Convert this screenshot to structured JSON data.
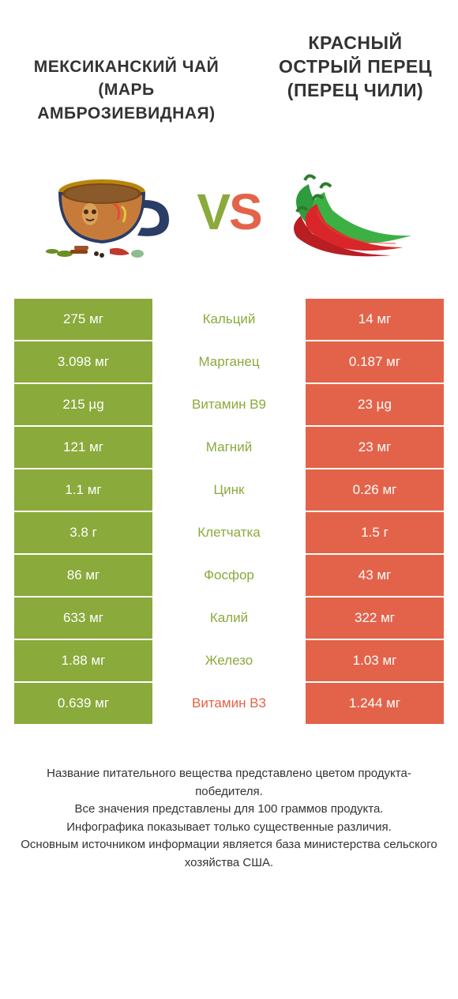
{
  "colors": {
    "left": "#8aaa3b",
    "right": "#e3634a",
    "text": "#333333",
    "bg": "#ffffff"
  },
  "header": {
    "left_title": "МЕКСИКАНСКИЙ ЧАЙ (МАРЬ АМБРОЗИЕВИДНАЯ)",
    "right_title": "КРАСНЫЙ ОСТРЫЙ ПЕРЕЦ (ПЕРЕЦ ЧИЛИ)",
    "vs_v": "V",
    "vs_s": "S"
  },
  "icons": {
    "left": "tea-cup-icon",
    "right": "chili-peppers-icon"
  },
  "rows": [
    {
      "left": "275 мг",
      "label": "Кальций",
      "right": "14 мг",
      "winner": "left"
    },
    {
      "left": "3.098 мг",
      "label": "Марганец",
      "right": "0.187 мг",
      "winner": "left"
    },
    {
      "left": "215 µg",
      "label": "Витамин B9",
      "right": "23 µg",
      "winner": "left"
    },
    {
      "left": "121 мг",
      "label": "Магний",
      "right": "23 мг",
      "winner": "left"
    },
    {
      "left": "1.1 мг",
      "label": "Цинк",
      "right": "0.26 мг",
      "winner": "left"
    },
    {
      "left": "3.8 г",
      "label": "Клетчатка",
      "right": "1.5 г",
      "winner": "left"
    },
    {
      "left": "86 мг",
      "label": "Фосфор",
      "right": "43 мг",
      "winner": "left"
    },
    {
      "left": "633 мг",
      "label": "Калий",
      "right": "322 мг",
      "winner": "left"
    },
    {
      "left": "1.88 мг",
      "label": "Железо",
      "right": "1.03 мг",
      "winner": "left"
    },
    {
      "left": "0.639 мг",
      "label": "Витамин B3",
      "right": "1.244 мг",
      "winner": "right"
    }
  ],
  "footer": {
    "line1": "Название питательного вещества представлено цветом продукта-победителя.",
    "line2": "Все значения представлены для 100 граммов продукта.",
    "line3": "Инфографика показывает только существенные различия.",
    "line4": "Основным источником информации является база министерства сельского хозяйства США."
  }
}
